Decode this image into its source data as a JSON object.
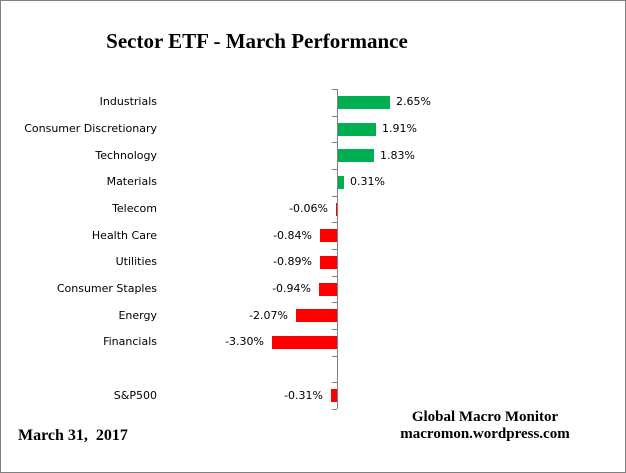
{
  "title": "Sector ETF - March Performance",
  "footer": {
    "date": "March 31,  2017",
    "credit_line1": "Global Macro Monitor",
    "credit_line2": "macromon.wordpress.com"
  },
  "chart_data": {
    "type": "bar",
    "orientation": "horizontal",
    "title": "Sector ETF - March Performance",
    "categories": [
      "Industrials",
      "Consumer Discretionary",
      "Technology",
      "Materials",
      "Telecom",
      "Health Care",
      "Utilities",
      "Consumer Staples",
      "Energy",
      "Financials",
      "S&P500"
    ],
    "values": [
      2.65,
      1.91,
      1.83,
      0.31,
      -0.06,
      -0.84,
      -0.89,
      -0.94,
      -2.07,
      -3.3,
      -0.31
    ],
    "value_labels": [
      "2.65%",
      "1.91%",
      "1.83%",
      "0.31%",
      "-0.06%",
      "-0.84%",
      "-0.89%",
      "-0.94%",
      "-2.07%",
      "-3.30%",
      "-0.31%"
    ],
    "positive_color": "#00B050",
    "negative_color": "#FF0000",
    "axis_color": "#808080",
    "grid": false,
    "legend": false,
    "spacer_before_last": true,
    "xlim": [
      -3.6,
      3.0
    ]
  }
}
